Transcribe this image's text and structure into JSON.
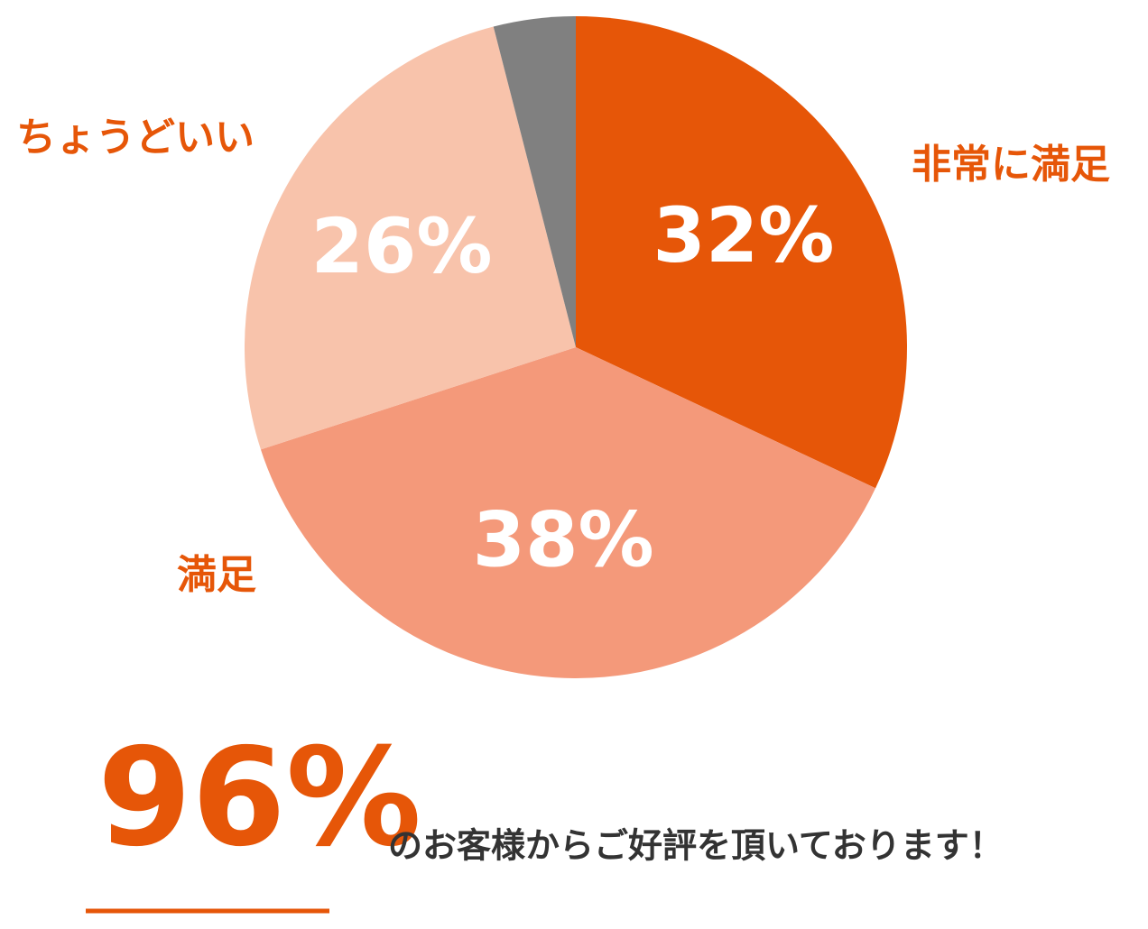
{
  "chart_data": {
    "type": "pie",
    "categories": [
      "非常に満足",
      "満足",
      "ちょうどいい",
      null
    ],
    "values": [
      32,
      38,
      26,
      4
    ],
    "value_labels": [
      "32%",
      "38%",
      "26%",
      null
    ],
    "colors": [
      "#e65608",
      "#f4997a",
      "#f8c3ab",
      "#808080"
    ],
    "start_angle": 0,
    "direction": "clockwise",
    "annotations": [
      {
        "text": "96%"
      },
      {
        "text": "のお客様からご好評を頂いております！"
      }
    ]
  }
}
